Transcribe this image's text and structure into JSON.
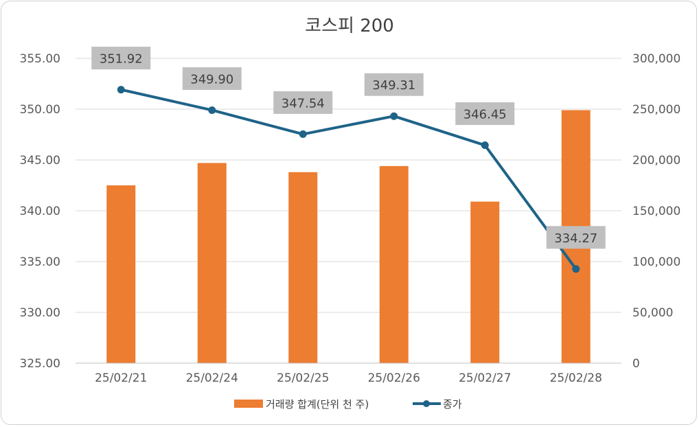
{
  "chart_data": {
    "type": "bar+line",
    "title": "코스피 200",
    "categories": [
      "25/02/21",
      "25/02/24",
      "25/02/25",
      "25/02/26",
      "25/02/27",
      "25/02/28"
    ],
    "series": [
      {
        "name": "거래량 합계(단위 천 주)",
        "type": "bar",
        "axis": "right",
        "color": "#ED7D31",
        "values": [
          175000,
          197000,
          188000,
          194000,
          159000,
          249000
        ]
      },
      {
        "name": "종가",
        "type": "line",
        "axis": "left",
        "color": "#1F6388",
        "values": [
          351.92,
          349.9,
          347.54,
          349.31,
          346.45,
          334.27
        ],
        "labels": [
          "351.92",
          "349.90",
          "347.54",
          "349.31",
          "346.45",
          "334.27"
        ]
      }
    ],
    "y_left": {
      "min": 325,
      "max": 355,
      "step": 5,
      "tick_labels": [
        "325.00",
        "330.00",
        "335.00",
        "340.00",
        "345.00",
        "350.00",
        "355.00"
      ]
    },
    "y_right": {
      "min": 0,
      "max": 300000,
      "step": 50000,
      "tick_labels": [
        "0",
        "50,000",
        "100,000",
        "150,000",
        "200,000",
        "250,000",
        "300,000"
      ]
    },
    "grid": true,
    "legend": "bottom"
  }
}
